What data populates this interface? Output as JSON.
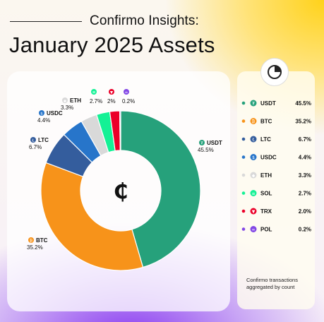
{
  "header": {
    "subtitle": "Confirmo Insights:",
    "title": "January 2025 Assets"
  },
  "center_symbol": "₵",
  "footnote": "Confirmo transactions aggregated by count",
  "colors": {
    "USDT": "#26a17b",
    "BTC": "#f7931a",
    "LTC": "#345d9d",
    "USDC": "#2775ca",
    "ETH": "#d9d9d9",
    "SOL": "#14f195",
    "TRX": "#eb0029",
    "POL": "#8247e5"
  },
  "icons": {
    "USDT": "₮",
    "BTC": "₿",
    "LTC": "Ł",
    "USDC": "$",
    "ETH": "◆",
    "SOL": "≡",
    "TRX": "▼",
    "POL": "∞"
  },
  "chart_data": {
    "type": "pie",
    "donut": true,
    "categories": [
      "USDT",
      "BTC",
      "LTC",
      "USDC",
      "ETH",
      "SOL",
      "TRX",
      "POL"
    ],
    "values": [
      45.5,
      35.2,
      6.7,
      4.4,
      3.3,
      2.7,
      2.0,
      0.2
    ],
    "slice_labels": [
      "45.5%",
      "35.2%",
      "6.7%",
      "4.4%",
      "3.3%",
      "2.7%",
      "2%",
      "0.2%"
    ],
    "legend_labels": [
      "45.5%",
      "35.2%",
      "6.7%",
      "4.4%",
      "3.3%",
      "2.7%",
      "2.0%",
      "0.2%"
    ],
    "legend_position": "right"
  }
}
